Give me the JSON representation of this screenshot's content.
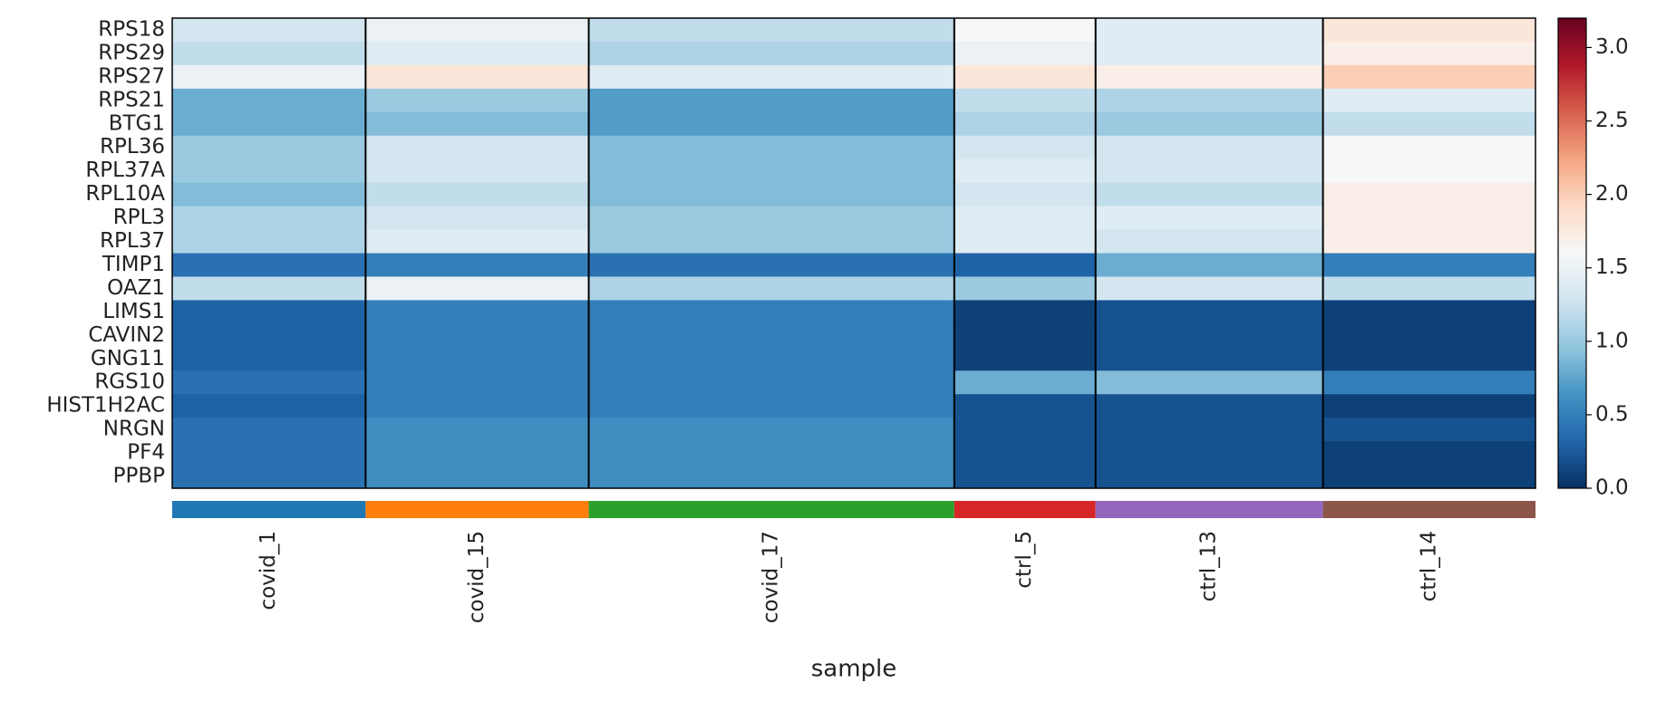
{
  "chart_data": {
    "type": "heatmap",
    "xlabel": "sample",
    "genes": [
      "RPS18",
      "RPS29",
      "RPS27",
      "RPS21",
      "BTG1",
      "RPL36",
      "RPL37A",
      "RPL10A",
      "RPL3",
      "RPL37",
      "TIMP1",
      "OAZ1",
      "LIMS1",
      "CAVIN2",
      "GNG11",
      "RGS10",
      "HIST1H2AC",
      "NRGN",
      "PF4",
      "PPBP"
    ],
    "groups": [
      {
        "name": "covid_1",
        "color": "#1f77b4",
        "size": 182
      },
      {
        "name": "covid_15",
        "color": "#ff7f0e",
        "size": 210
      },
      {
        "name": "covid_17",
        "color": "#2ca02c",
        "size": 344
      },
      {
        "name": "ctrl_5",
        "color": "#d62728",
        "size": 133
      },
      {
        "name": "ctrl_13",
        "color": "#9467bd",
        "size": 214
      },
      {
        "name": "ctrl_14",
        "color": "#8c564b",
        "size": 200
      }
    ],
    "values": [
      [
        1.3,
        1.5,
        1.2,
        1.6,
        1.4,
        1.8
      ],
      [
        1.2,
        1.4,
        1.1,
        1.5,
        1.4,
        1.7
      ],
      [
        1.5,
        1.8,
        1.4,
        1.8,
        1.7,
        2.0
      ],
      [
        0.8,
        1.0,
        0.7,
        1.2,
        1.1,
        1.4
      ],
      [
        0.8,
        0.9,
        0.7,
        1.1,
        1.0,
        1.2
      ],
      [
        1.0,
        1.3,
        0.9,
        1.3,
        1.3,
        1.6
      ],
      [
        1.0,
        1.3,
        0.9,
        1.4,
        1.3,
        1.6
      ],
      [
        0.9,
        1.2,
        0.9,
        1.3,
        1.2,
        1.7
      ],
      [
        1.1,
        1.3,
        1.0,
        1.4,
        1.4,
        1.7
      ],
      [
        1.1,
        1.4,
        1.0,
        1.4,
        1.3,
        1.7
      ],
      [
        0.4,
        0.5,
        0.4,
        0.3,
        0.8,
        0.5
      ],
      [
        1.2,
        1.5,
        1.1,
        1.0,
        1.3,
        1.2
      ],
      [
        0.3,
        0.5,
        0.5,
        0.1,
        0.2,
        0.1
      ],
      [
        0.3,
        0.5,
        0.5,
        0.1,
        0.2,
        0.1
      ],
      [
        0.3,
        0.5,
        0.5,
        0.1,
        0.2,
        0.1
      ],
      [
        0.4,
        0.5,
        0.5,
        0.8,
        0.9,
        0.5
      ],
      [
        0.3,
        0.5,
        0.5,
        0.2,
        0.2,
        0.1
      ],
      [
        0.4,
        0.6,
        0.6,
        0.2,
        0.2,
        0.2
      ],
      [
        0.4,
        0.6,
        0.6,
        0.2,
        0.2,
        0.1
      ],
      [
        0.4,
        0.6,
        0.6,
        0.2,
        0.2,
        0.1
      ]
    ],
    "colormap": [
      "#053061",
      "#2166ac",
      "#4393c3",
      "#92c5de",
      "#d1e5f0",
      "#f7f7f7",
      "#fddbc7",
      "#f4a582",
      "#d6604d",
      "#b2182b",
      "#67001f"
    ],
    "clim": [
      0,
      3.2
    ],
    "cticks": [
      {
        "value": 0,
        "label": "0.0"
      },
      0.5,
      {
        "value": 1,
        "label": "1.0"
      },
      1.5,
      {
        "value": 2,
        "label": "2.0"
      },
      2.5,
      {
        "value": 3,
        "label": "3.0"
      }
    ]
  }
}
